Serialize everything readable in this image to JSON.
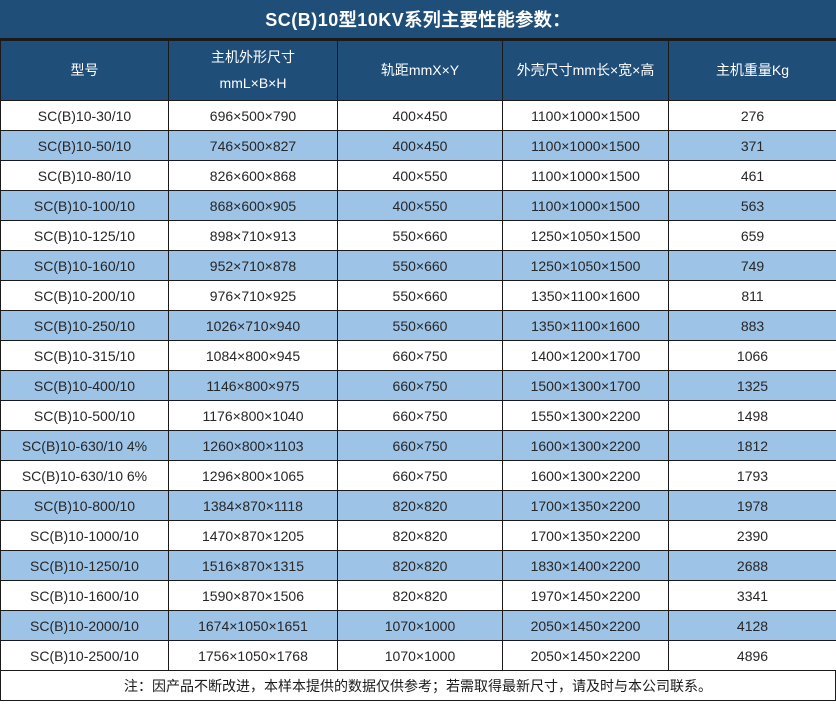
{
  "title": "SC(B)10型10KV系列主要性能参数：",
  "note": "注：因产品不断改进，本样本提供的数据仅供参考；若需取得最新尺寸，请及时与本公司联系。",
  "colors": {
    "header_navy": "#1F4E79",
    "row_light_blue": "#9DC3E6",
    "border": "#1A1A1A",
    "header_text": "#FFFFFF",
    "body_text": "#262626"
  },
  "table": {
    "columns": [
      {
        "label": "型号"
      },
      {
        "label": "主机外形尺寸",
        "label2": "mmL×B×H"
      },
      {
        "label": "轨距mmX×Y"
      },
      {
        "label": "外壳尺寸mm长×宽×高"
      },
      {
        "label": "主机重量Kg"
      }
    ],
    "rows": [
      {
        "model": "SC(B)10-30/10",
        "dimensions": "696×500×790",
        "rail": "400×450",
        "shell": "1100×1000×1500",
        "weight": "276"
      },
      {
        "model": "SC(B)10-50/10",
        "dimensions": "746×500×827",
        "rail": "400×450",
        "shell": "1100×1000×1500",
        "weight": "371"
      },
      {
        "model": "SC(B)10-80/10",
        "dimensions": "826×600×868",
        "rail": "400×550",
        "shell": "1100×1000×1500",
        "weight": "461"
      },
      {
        "model": "SC(B)10-100/10",
        "dimensions": "868×600×905",
        "rail": "400×550",
        "shell": "1100×1000×1500",
        "weight": "563"
      },
      {
        "model": "SC(B)10-125/10",
        "dimensions": "898×710×913",
        "rail": "550×660",
        "shell": "1250×1050×1500",
        "weight": "659"
      },
      {
        "model": "SC(B)10-160/10",
        "dimensions": "952×710×878",
        "rail": "550×660",
        "shell": "1250×1050×1500",
        "weight": "749"
      },
      {
        "model": "SC(B)10-200/10",
        "dimensions": "976×710×925",
        "rail": "550×660",
        "shell": "1350×1100×1600",
        "weight": "811"
      },
      {
        "model": "SC(B)10-250/10",
        "dimensions": "1026×710×940",
        "rail": "550×660",
        "shell": "1350×1100×1600",
        "weight": "883"
      },
      {
        "model": "SC(B)10-315/10",
        "dimensions": "1084×800×945",
        "rail": "660×750",
        "shell": "1400×1200×1700",
        "weight": "1066"
      },
      {
        "model": "SC(B)10-400/10",
        "dimensions": "1146×800×975",
        "rail": "660×750",
        "shell": "1500×1300×1700",
        "weight": "1325"
      },
      {
        "model": "SC(B)10-500/10",
        "dimensions": "1176×800×1040",
        "rail": "660×750",
        "shell": "1550×1300×2200",
        "weight": "1498"
      },
      {
        "model": "SC(B)10-630/10 4%",
        "dimensions": "1260×800×1103",
        "rail": "660×750",
        "shell": "1600×1300×2200",
        "weight": "1812"
      },
      {
        "model": "SC(B)10-630/10 6%",
        "dimensions": "1296×800×1065",
        "rail": "660×750",
        "shell": "1600×1300×2200",
        "weight": "1793"
      },
      {
        "model": "SC(B)10-800/10",
        "dimensions": "1384×870×1118",
        "rail": "820×820",
        "shell": "1700×1350×2200",
        "weight": "1978"
      },
      {
        "model": "SC(B)10-1000/10",
        "dimensions": "1470×870×1205",
        "rail": "820×820",
        "shell": "1700×1350×2200",
        "weight": "2390"
      },
      {
        "model": "SC(B)10-1250/10",
        "dimensions": "1516×870×1315",
        "rail": "820×820",
        "shell": "1830×1400×2200",
        "weight": "2688"
      },
      {
        "model": "SC(B)10-1600/10",
        "dimensions": "1590×870×1506",
        "rail": "820×820",
        "shell": "1970×1450×2200",
        "weight": "3341"
      },
      {
        "model": "SC(B)10-2000/10",
        "dimensions": "1674×1050×1651",
        "rail": "1070×1000",
        "shell": "2050×1450×2200",
        "weight": "4128"
      },
      {
        "model": "SC(B)10-2500/10",
        "dimensions": "1756×1050×1768",
        "rail": "1070×1000",
        "shell": "2050×1450×2200",
        "weight": "4896"
      }
    ]
  }
}
